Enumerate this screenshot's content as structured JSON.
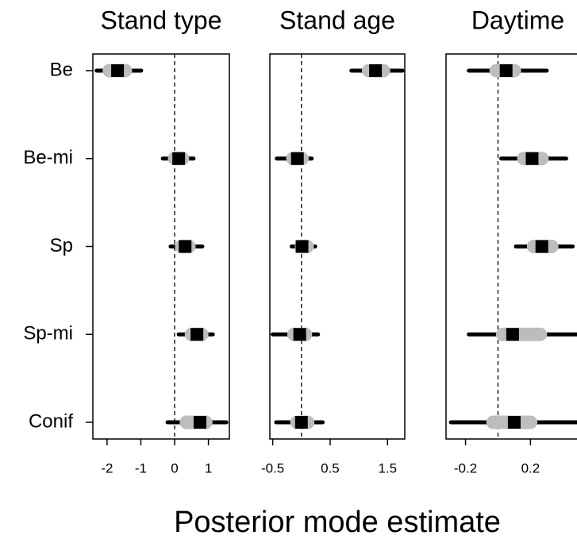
{
  "chart_data": {
    "type": "forest",
    "xlabel": "Posterior mode estimate",
    "categories": [
      "Be",
      "Be-mi",
      "Sp",
      "Sp-mi",
      "Conif"
    ],
    "mode_color": "#000000",
    "inner_color": "#bdbdbd",
    "outer_color": "#000000",
    "panels": [
      {
        "title": "Stand type",
        "xlim": [
          -2.42,
          1.62
        ],
        "xticks": [
          -2,
          -1,
          0,
          1
        ],
        "ref_line": 0,
        "mode": [
          -1.69,
          0.12,
          0.31,
          0.66,
          0.75
        ],
        "inner_low": [
          -2.12,
          -0.19,
          0.02,
          0.31,
          0.16
        ],
        "inner_high": [
          -1.27,
          0.42,
          0.61,
          0.99,
          1.11
        ],
        "outer_low": [
          -2.31,
          -0.35,
          -0.12,
          0.12,
          -0.21
        ],
        "outer_high": [
          -0.99,
          0.56,
          0.82,
          1.13,
          1.53
        ]
      },
      {
        "title": "Stand age",
        "xlim": [
          -0.55,
          1.8
        ],
        "xticks": [
          -0.5,
          0.5,
          1.5
        ],
        "ref_line": 0,
        "mode": [
          1.29,
          -0.07,
          0.01,
          -0.03,
          0
        ],
        "inner_low": [
          1.06,
          -0.26,
          -0.11,
          -0.24,
          -0.19
        ],
        "inner_high": [
          1.54,
          0.12,
          0.21,
          0.18,
          0.22
        ],
        "outer_low": [
          0.87,
          -0.43,
          -0.17,
          -0.5,
          -0.44
        ],
        "outer_high": [
          1.76,
          0.18,
          0.24,
          0.29,
          0.37
        ]
      },
      {
        "title": "Daytime",
        "xlim": [
          -0.32,
          0.55
        ],
        "xticks": [
          -0.2,
          0.2
        ],
        "ref_line": 0,
        "mode": [
          0.05,
          0.21,
          0.27,
          0.09,
          0.1
        ],
        "inner_low": [
          -0.05,
          0.12,
          0.18,
          -0.01,
          -0.07
        ],
        "inner_high": [
          0.14,
          0.31,
          0.37,
          0.3,
          0.24
        ],
        "outer_low": [
          -0.18,
          0.02,
          0.11,
          -0.18,
          -0.29
        ],
        "outer_high": [
          0.3,
          0.42,
          0.46,
          0.6,
          0.6
        ]
      }
    ]
  }
}
